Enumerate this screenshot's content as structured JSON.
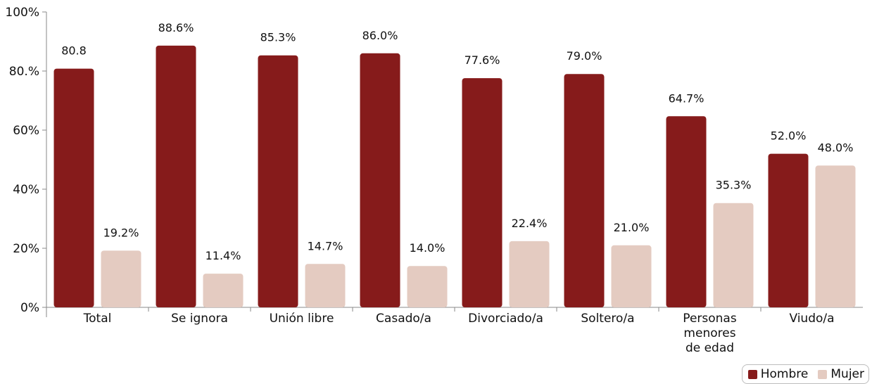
{
  "chart_data": {
    "type": "bar",
    "categories": [
      "Total",
      "Se ignora",
      "Unión libre",
      "Casado/a",
      "Divorciado/a",
      "Soltero/a",
      "Personas menores de edad",
      "Viudo/a"
    ],
    "category_lines": [
      [
        "Total"
      ],
      [
        "Se ignora"
      ],
      [
        "Unión libre"
      ],
      [
        "Casado/a"
      ],
      [
        "Divorciado/a"
      ],
      [
        "Soltero/a"
      ],
      [
        "Personas",
        "menores",
        "de edad"
      ],
      [
        "Viudo/a"
      ]
    ],
    "series": [
      {
        "name": "Hombre",
        "color": "#861b1b",
        "values": [
          80.8,
          88.6,
          85.3,
          86.0,
          77.6,
          79.0,
          64.7,
          52.0
        ],
        "labels": [
          "80.8",
          "88.6%",
          "85.3%",
          "86.0%",
          "77.6%",
          "79.0%",
          "64.7%",
          "52.0%"
        ]
      },
      {
        "name": "Mujer",
        "color": "#e4cbc1",
        "values": [
          19.2,
          11.4,
          14.7,
          14.0,
          22.4,
          21.0,
          35.3,
          48.0
        ],
        "labels": [
          "19.2%",
          "11.4%",
          "14.7%",
          "14.0%",
          "22.4%",
          "21.0%",
          "35.3%",
          "48.0%"
        ]
      }
    ],
    "yticks": [
      0,
      20,
      40,
      60,
      80,
      100
    ],
    "ytick_labels": [
      "0%",
      "20%",
      "40%",
      "60%",
      "80.%",
      "100%"
    ],
    "ylim": [
      0,
      100
    ],
    "legend_position": "bottom-right",
    "grid": false,
    "title": "",
    "xlabel": "",
    "ylabel": ""
  }
}
